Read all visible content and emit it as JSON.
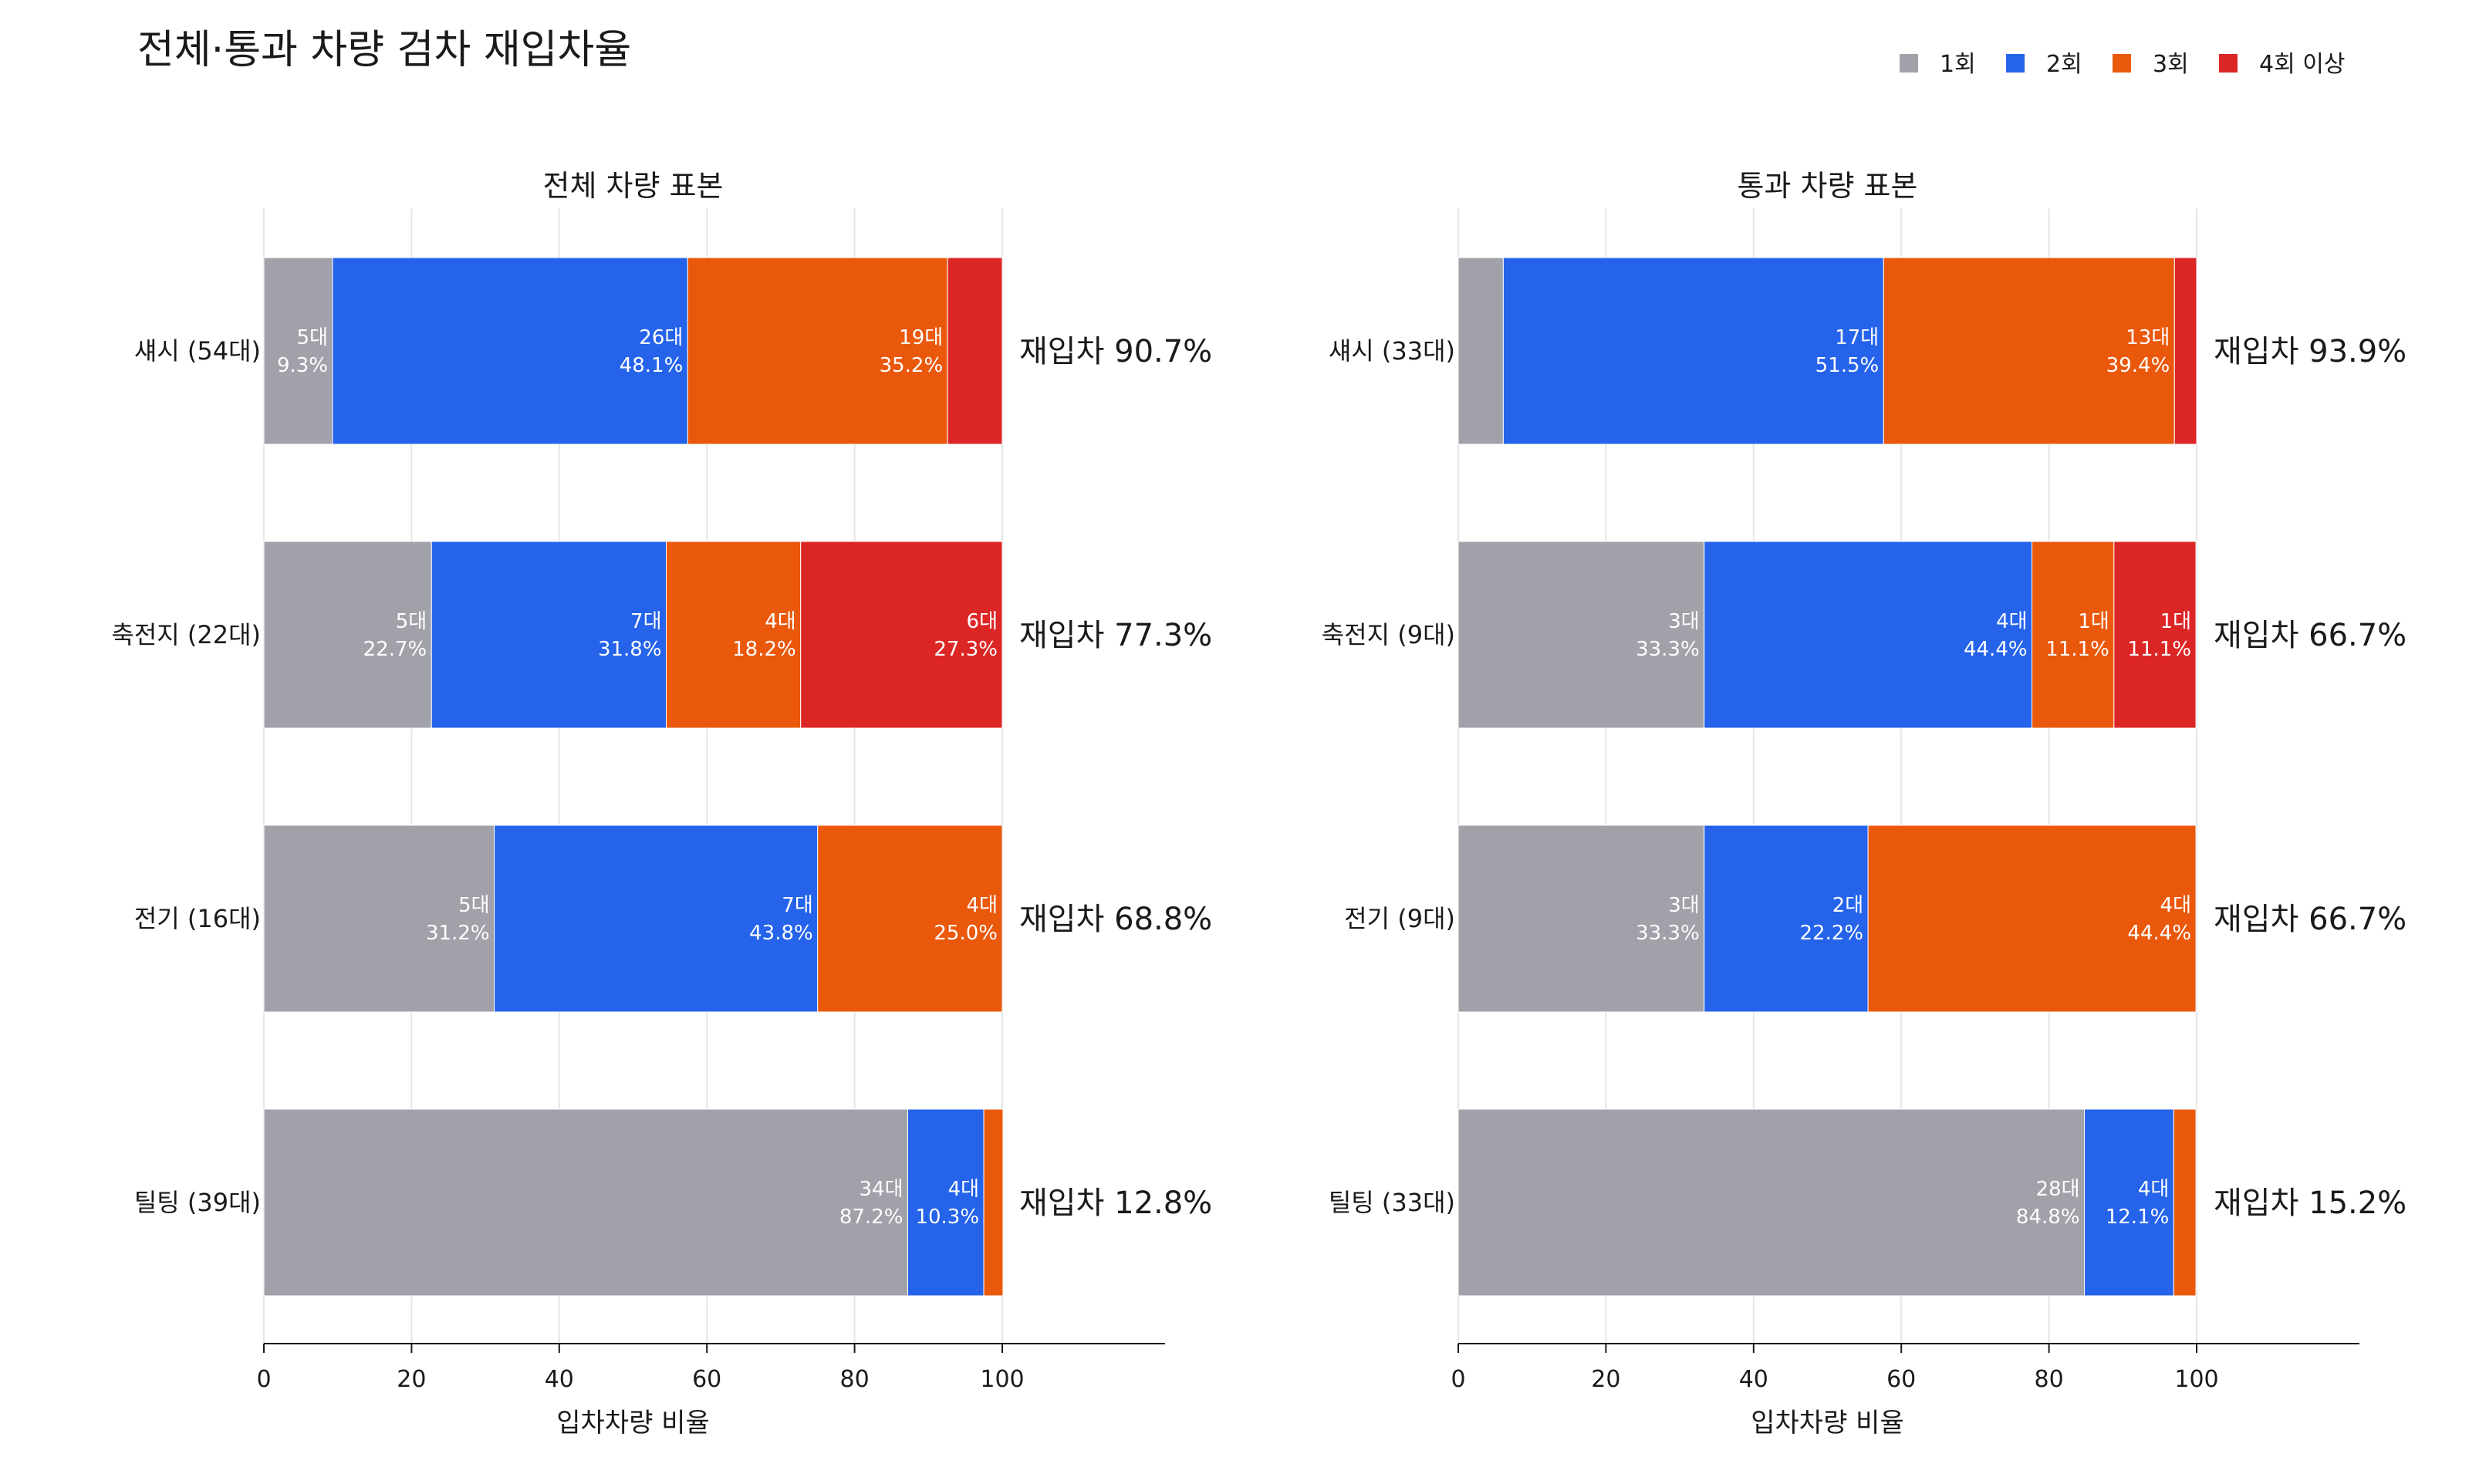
{
  "title": "전체·통과 차량 검차 재입차율",
  "legend": [
    {
      "name": "1회",
      "color": "#a1a1aa"
    },
    {
      "name": "2회",
      "color": "#2563eb"
    },
    {
      "name": "3회",
      "color": "#ea580c"
    },
    {
      "name": "4회 이상",
      "color": "#dc2626"
    }
  ],
  "chart_data": [
    {
      "type": "bar",
      "orientation": "horizontal",
      "stacked": true,
      "title": "전체 차량 표본",
      "xlabel": "입차차량 비율",
      "xlim": [
        0,
        100
      ],
      "xticks": [
        0,
        20,
        40,
        60,
        80,
        100
      ],
      "grid": true,
      "categories": [
        "섀시 (54대)",
        "축전지 (22대)",
        "전기 (16대)",
        "틸팅 (39대)"
      ],
      "series": [
        {
          "name": "1회",
          "values": [
            9.3,
            22.7,
            31.2,
            87.2
          ],
          "counts": [
            "5대",
            "5대",
            "5대",
            "34대"
          ],
          "labels": [
            "9.3%",
            "22.7%",
            "31.2%",
            "87.2%"
          ]
        },
        {
          "name": "2회",
          "values": [
            48.1,
            31.8,
            43.8,
            10.3
          ],
          "counts": [
            "26대",
            "7대",
            "7대",
            "4대"
          ],
          "labels": [
            "48.1%",
            "31.8%",
            "43.8%",
            "10.3%"
          ]
        },
        {
          "name": "3회",
          "values": [
            35.2,
            18.2,
            25.0,
            2.6
          ],
          "counts": [
            "19대",
            "4대",
            "4대",
            ""
          ],
          "labels": [
            "35.2%",
            "18.2%",
            "25.0%",
            ""
          ]
        },
        {
          "name": "4회 이상",
          "values": [
            7.4,
            27.3,
            0,
            0
          ],
          "counts": [
            "",
            "6대",
            "",
            ""
          ],
          "labels": [
            "",
            "27.3%",
            "",
            ""
          ]
        }
      ],
      "annotations": [
        "재입차 90.7%",
        "재입차 77.3%",
        "재입차 68.8%",
        "재입차 12.8%"
      ]
    },
    {
      "type": "bar",
      "orientation": "horizontal",
      "stacked": true,
      "title": "통과 차량 표본",
      "xlabel": "입차차량 비율",
      "xlim": [
        0,
        100
      ],
      "xticks": [
        0,
        20,
        40,
        60,
        80,
        100
      ],
      "grid": true,
      "categories": [
        "섀시 (33대)",
        "축전지 (9대)",
        "전기 (9대)",
        "틸팅 (33대)"
      ],
      "series": [
        {
          "name": "1회",
          "values": [
            6.1,
            33.3,
            33.3,
            84.8
          ],
          "counts": [
            "",
            "3대",
            "3대",
            "28대"
          ],
          "labels": [
            "",
            "33.3%",
            "33.3%",
            "84.8%"
          ]
        },
        {
          "name": "2회",
          "values": [
            51.5,
            44.4,
            22.2,
            12.1
          ],
          "counts": [
            "17대",
            "4대",
            "2대",
            "4대"
          ],
          "labels": [
            "51.5%",
            "44.4%",
            "22.2%",
            "12.1%"
          ]
        },
        {
          "name": "3회",
          "values": [
            39.4,
            11.1,
            44.4,
            3.0
          ],
          "counts": [
            "13대",
            "1대",
            "4대",
            ""
          ],
          "labels": [
            "39.4%",
            "11.1%",
            "44.4%",
            ""
          ]
        },
        {
          "name": "4회 이상",
          "values": [
            3.0,
            11.1,
            0,
            0
          ],
          "counts": [
            "",
            "1대",
            "",
            ""
          ],
          "labels": [
            "",
            "11.1%",
            "",
            ""
          ]
        }
      ],
      "annotations": [
        "재입차 93.9%",
        "재입차 66.7%",
        "재입차 66.7%",
        "재입차 15.2%"
      ]
    }
  ]
}
